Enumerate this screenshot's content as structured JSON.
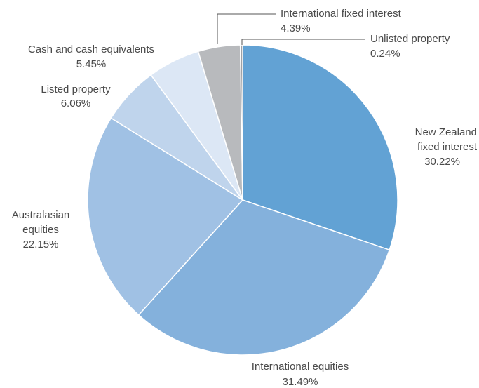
{
  "chart_data": {
    "type": "pie",
    "start_angle_deg": 0,
    "direction": "clockwise",
    "slices": [
      {
        "label_lines": [
          "New Zealand",
          "fixed interest"
        ],
        "value_text": "30.22%",
        "value": 30.22,
        "color": "#62a2d4"
      },
      {
        "label_lines": [
          "International equities"
        ],
        "value_text": "31.49%",
        "value": 31.49,
        "color": "#84b1dc"
      },
      {
        "label_lines": [
          "Australasian",
          "equities"
        ],
        "value_text": "22.15%",
        "value": 22.15,
        "color": "#a0c1e4"
      },
      {
        "label_lines": [
          "Listed property"
        ],
        "value_text": "6.06%",
        "value": 6.06,
        "color": "#bfd4ec"
      },
      {
        "label_lines": [
          "Cash and cash equivalents"
        ],
        "value_text": "5.45%",
        "value": 5.45,
        "color": "#dce7f5"
      },
      {
        "label_lines": [
          "International fixed interest"
        ],
        "value_text": "4.39%",
        "value": 4.39,
        "color": "#b8babd"
      },
      {
        "label_lines": [
          "Unlisted property"
        ],
        "value_text": "0.24%",
        "value": 0.24,
        "color": "#9ea1a6"
      }
    ]
  }
}
